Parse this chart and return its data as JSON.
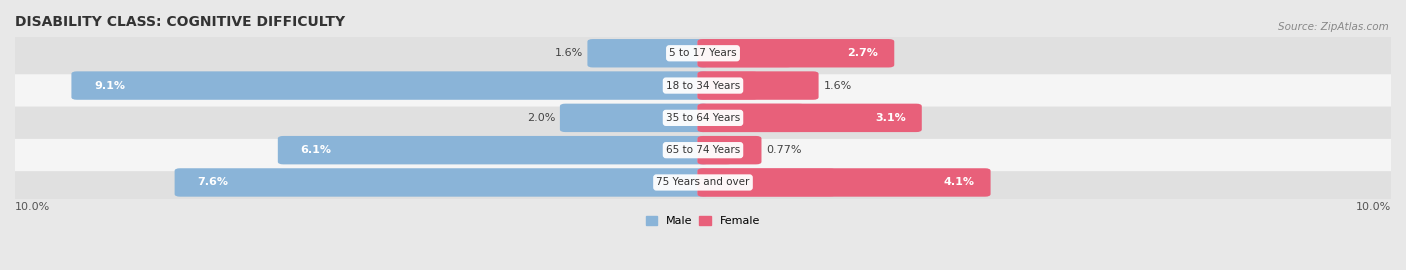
{
  "title": "DISABILITY CLASS: COGNITIVE DIFFICULTY",
  "source": "Source: ZipAtlas.com",
  "categories": [
    "5 to 17 Years",
    "18 to 34 Years",
    "35 to 64 Years",
    "65 to 74 Years",
    "75 Years and over"
  ],
  "male_values": [
    1.6,
    9.1,
    2.0,
    6.1,
    7.6
  ],
  "female_values": [
    2.7,
    1.6,
    3.1,
    0.77,
    4.1
  ],
  "male_color": "#8ab4d8",
  "female_color": "#e8607a",
  "female_color_light": "#f0a0b8",
  "xlim": 10.0,
  "axis_label_left": "10.0%",
  "axis_label_right": "10.0%",
  "bg_color": "#e8e8e8",
  "row_colors": [
    "#e0e0e0",
    "#f5f5f5"
  ],
  "title_fontsize": 10,
  "label_fontsize": 8,
  "value_fontsize": 8,
  "legend_male": "Male",
  "legend_female": "Female",
  "bar_height": 0.72
}
